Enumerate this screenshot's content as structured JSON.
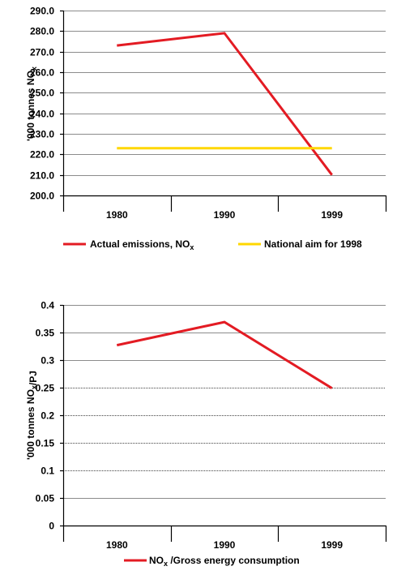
{
  "chart_data": [
    {
      "type": "line",
      "categories": [
        "1980",
        "1990",
        "1999"
      ],
      "ylabel": "'000 tonnes NOx",
      "ylim": [
        200,
        290
      ],
      "yticks": [
        "200.0",
        "210.0",
        "220.0",
        "230.0",
        "240.0",
        "250.0",
        "260.0",
        "270.0",
        "280.0",
        "290.0"
      ],
      "grid": true,
      "legend_position": "bottom",
      "series": [
        {
          "name": "Actual emissions, NOx",
          "values": [
            273,
            279,
            210
          ],
          "color": "#e31b23"
        },
        {
          "name": "National aim for 1998",
          "values": [
            223,
            223,
            223
          ],
          "color": "#ffd700"
        }
      ]
    },
    {
      "type": "line",
      "categories": [
        "1980",
        "1990",
        "1999"
      ],
      "ylabel": "'000 tonnes NOx/PJ",
      "ylim": [
        0,
        0.4
      ],
      "yticks": [
        "0",
        "0.05",
        "0.1",
        "0.15",
        "0.2",
        "0.25",
        "0.3",
        "0.35",
        "0.4"
      ],
      "grid": true,
      "legend_position": "bottom",
      "series": [
        {
          "name": "NOx /Gross energy consumption",
          "values": [
            0.327,
            0.369,
            0.249
          ],
          "color": "#e31b23"
        }
      ]
    }
  ]
}
